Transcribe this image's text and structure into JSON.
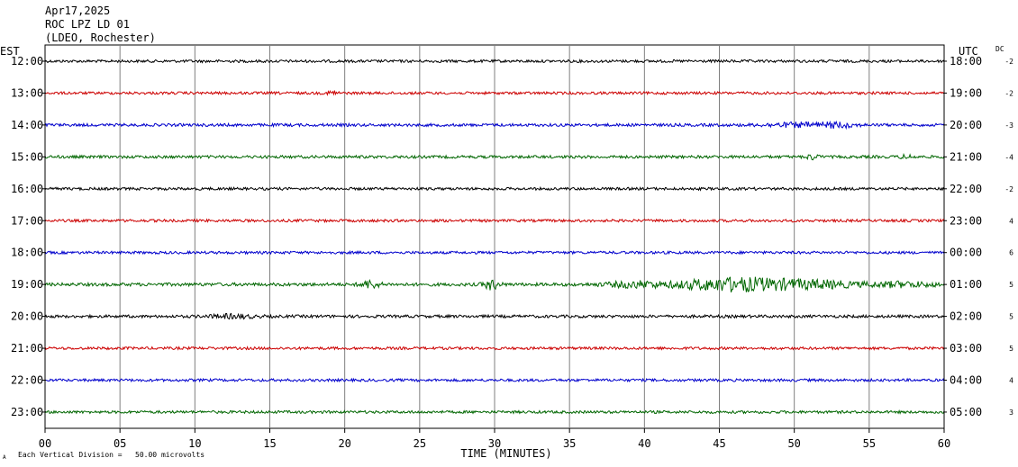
{
  "header": {
    "date": "Apr17,2025",
    "station": "ROC LPZ LD 01",
    "network": "(LDEO, Rochester)"
  },
  "axis_labels": {
    "left_tz": "EST",
    "right_tz": "UTC",
    "dc": "DC"
  },
  "footer": {
    "logo_mark": "A",
    "scale_note": "Each Vertical Division =   50.00 microvolts"
  },
  "chart_data": {
    "type": "line",
    "xlabel": "TIME (MINUTES)",
    "xlim": [
      0,
      60
    ],
    "x_ticks": [
      0,
      5,
      10,
      15,
      20,
      25,
      30,
      35,
      40,
      45,
      50,
      55,
      60
    ],
    "x_tick_labels": [
      "00",
      "05",
      "10",
      "15",
      "20",
      "25",
      "30",
      "35",
      "40",
      "45",
      "50",
      "55",
      "60"
    ],
    "grid": true,
    "trace_colors": [
      "#000000",
      "#cc0000",
      "#0000cc",
      "#006600"
    ],
    "rows": [
      {
        "est": "12:00",
        "utc": "18:00",
        "dc": "-2",
        "color": "#000000",
        "amp": 1.5,
        "bursts": []
      },
      {
        "est": "13:00",
        "utc": "19:00",
        "dc": "-2",
        "color": "#cc0000",
        "amp": 1.5,
        "bursts": [
          [
            19.2,
            0.3,
            2.5
          ]
        ]
      },
      {
        "est": "14:00",
        "utc": "20:00",
        "dc": "-3",
        "color": "#0000cc",
        "amp": 1.6,
        "bursts": [
          [
            50.5,
            2.5,
            2.0
          ],
          [
            53.0,
            1.0,
            2.0
          ]
        ]
      },
      {
        "est": "15:00",
        "utc": "21:00",
        "dc": "-4",
        "color": "#006600",
        "amp": 1.6,
        "bursts": [
          [
            51.2,
            0.4,
            2.5
          ],
          [
            57.5,
            0.5,
            1.5
          ]
        ]
      },
      {
        "est": "16:00",
        "utc": "22:00",
        "dc": "-2",
        "color": "#000000",
        "amp": 1.5,
        "bursts": []
      },
      {
        "est": "17:00",
        "utc": "23:00",
        "dc": "4",
        "color": "#cc0000",
        "amp": 1.5,
        "bursts": []
      },
      {
        "est": "18:00",
        "utc": "00:00",
        "dc": "6",
        "color": "#0000cc",
        "amp": 1.5,
        "bursts": []
      },
      {
        "est": "19:00",
        "utc": "01:00",
        "dc": "5",
        "color": "#006600",
        "amp": 1.8,
        "bursts": [
          [
            21.7,
            0.6,
            4.0
          ],
          [
            29.8,
            0.5,
            5.0
          ],
          [
            39.5,
            2.0,
            3.0
          ],
          [
            44.0,
            2.2,
            4.5
          ],
          [
            46.5,
            1.8,
            5.0
          ],
          [
            49.0,
            2.0,
            4.5
          ],
          [
            52.0,
            2.0,
            3.5
          ],
          [
            57.0,
            2.5,
            2.5
          ]
        ]
      },
      {
        "est": "20:00",
        "utc": "02:00",
        "dc": "5",
        "color": "#000000",
        "amp": 1.6,
        "bursts": [
          [
            12.5,
            1.5,
            1.8
          ]
        ]
      },
      {
        "est": "21:00",
        "utc": "03:00",
        "dc": "5",
        "color": "#cc0000",
        "amp": 1.5,
        "bursts": []
      },
      {
        "est": "22:00",
        "utc": "04:00",
        "dc": "4",
        "color": "#0000cc",
        "amp": 1.5,
        "bursts": []
      },
      {
        "est": "23:00",
        "utc": "05:00",
        "dc": "3",
        "color": "#006600",
        "amp": 1.5,
        "bursts": []
      }
    ]
  }
}
